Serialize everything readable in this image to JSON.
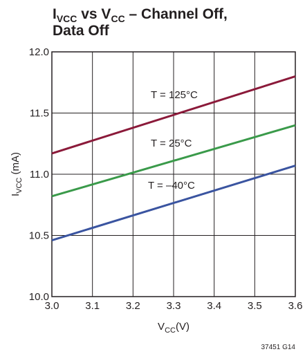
{
  "chart_data": {
    "type": "line",
    "title_parts": {
      "i": "I",
      "i_sub": "VCC",
      "mid": " vs V",
      "v_sub": "CC",
      "rest": " – Channel Off,",
      "line2": "Data Off"
    },
    "xlabel_parts": {
      "main": "V",
      "sub": "CC",
      "rest": "(V)"
    },
    "ylabel_parts": {
      "main": "I",
      "sub": "VCC",
      "rest": " (mA)"
    },
    "xlim": [
      3.0,
      3.6
    ],
    "ylim": [
      10.0,
      12.0
    ],
    "x_ticks": [
      "3.0",
      "3.1",
      "3.2",
      "3.3",
      "3.4",
      "3.5",
      "3.6"
    ],
    "y_ticks": [
      "12.0",
      "11.5",
      "11.0",
      "10.5",
      "10.0"
    ],
    "grid": true,
    "x": [
      3.0,
      3.6
    ],
    "series": [
      {
        "name": "T = 125°C",
        "values": [
          11.17,
          11.8
        ],
        "color": "#8b1a3a"
      },
      {
        "name": "T = 25°C",
        "values": [
          10.82,
          11.4
        ],
        "color": "#3a9a4a"
      },
      {
        "name": "T = –40°C",
        "values": [
          10.46,
          11.07
        ],
        "color": "#3a54a0"
      }
    ],
    "figure_id": "37451 G14"
  }
}
